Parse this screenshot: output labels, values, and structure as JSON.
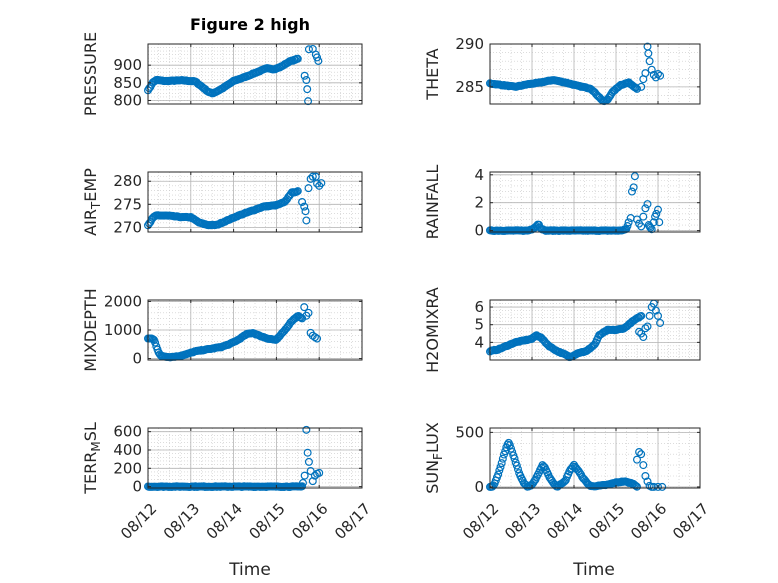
{
  "figure": {
    "title": "Figure 2 high"
  },
  "colors": {
    "marker": "#0072BD",
    "axis": "#262626",
    "grid": "#c8c8c8",
    "background": "#ffffff"
  },
  "chart_data": [
    {
      "type": "scatter",
      "id": "pressure",
      "ylabel": "PRESSURE",
      "grid": true,
      "marker": "open-circle",
      "xlim": [
        "08/12",
        "08/17"
      ],
      "ylim": [
        790,
        960
      ],
      "yticks": [
        800,
        850,
        900
      ],
      "xticks": [
        {
          "label": "08/12",
          "day": 12
        },
        {
          "label": "08/13",
          "day": 13
        },
        {
          "label": "08/14",
          "day": 14
        },
        {
          "label": "08/15",
          "day": 15
        },
        {
          "label": "08/16",
          "day": 16
        },
        {
          "label": "08/17",
          "day": 17
        }
      ],
      "anchors": [
        [
          12.0,
          830
        ],
        [
          12.04,
          835
        ],
        [
          12.08,
          845
        ],
        [
          12.12,
          852
        ],
        [
          12.2,
          858
        ],
        [
          12.4,
          855
        ],
        [
          12.8,
          857
        ],
        [
          13.1,
          854
        ],
        [
          13.25,
          840
        ],
        [
          13.4,
          825
        ],
        [
          13.5,
          820
        ],
        [
          13.6,
          825
        ],
        [
          13.75,
          835
        ],
        [
          14.0,
          855
        ],
        [
          14.3,
          868
        ],
        [
          14.5,
          878
        ],
        [
          14.8,
          892
        ],
        [
          14.95,
          888
        ],
        [
          15.1,
          895
        ],
        [
          15.3,
          910
        ],
        [
          15.5,
          918
        ]
      ],
      "extra": [
        [
          15.66,
          870
        ],
        [
          15.7,
          858
        ],
        [
          15.72,
          832
        ],
        [
          15.74,
          798
        ],
        [
          15.76,
          945
        ],
        [
          15.85,
          946
        ],
        [
          15.92,
          930
        ],
        [
          15.95,
          922
        ],
        [
          15.98,
          912
        ]
      ]
    },
    {
      "type": "scatter",
      "id": "theta",
      "ylabel": "THETA",
      "grid": true,
      "marker": "open-circle",
      "xlim": [
        "08/12",
        "08/17"
      ],
      "ylim": [
        283,
        290
      ],
      "yticks": [
        285,
        290
      ],
      "xticks": [
        {
          "label": "08/12",
          "day": 12
        },
        {
          "label": "08/13",
          "day": 13
        },
        {
          "label": "08/14",
          "day": 14
        },
        {
          "label": "08/15",
          "day": 15
        },
        {
          "label": "08/16",
          "day": 16
        },
        {
          "label": "08/17",
          "day": 17
        }
      ],
      "anchors": [
        [
          12.0,
          285.4
        ],
        [
          12.3,
          285.2
        ],
        [
          12.6,
          285.0
        ],
        [
          12.9,
          285.3
        ],
        [
          13.2,
          285.5
        ],
        [
          13.5,
          285.8
        ],
        [
          13.8,
          285.5
        ],
        [
          14.1,
          285.1
        ],
        [
          14.4,
          284.8
        ],
        [
          14.6,
          283.8
        ],
        [
          14.7,
          283.3
        ],
        [
          14.8,
          283.5
        ],
        [
          14.9,
          284.3
        ],
        [
          15.1,
          285.2
        ],
        [
          15.3,
          285.5
        ],
        [
          15.5,
          284.8
        ]
      ],
      "extra": [
        [
          15.6,
          285.0
        ],
        [
          15.65,
          285.9
        ],
        [
          15.7,
          286.6
        ],
        [
          15.75,
          289.7
        ],
        [
          15.77,
          288.9
        ],
        [
          15.8,
          288.0
        ],
        [
          15.85,
          287.0
        ],
        [
          15.9,
          286.4
        ],
        [
          15.95,
          286.1
        ],
        [
          16.0,
          286.5
        ],
        [
          16.05,
          286.3
        ]
      ]
    },
    {
      "type": "scatter",
      "id": "air-temp",
      "ylabel": "AIR",
      "ylabel_sub": "T",
      "ylabel_suffix": "EMP",
      "grid": true,
      "marker": "open-circle",
      "xlim": [
        "08/12",
        "08/17"
      ],
      "ylim": [
        269,
        282
      ],
      "yticks": [
        270,
        275,
        280
      ],
      "xticks": [
        {
          "label": "08/12",
          "day": 12
        },
        {
          "label": "08/13",
          "day": 13
        },
        {
          "label": "08/14",
          "day": 14
        },
        {
          "label": "08/15",
          "day": 15
        },
        {
          "label": "08/16",
          "day": 16
        },
        {
          "label": "08/17",
          "day": 17
        }
      ],
      "anchors": [
        [
          12.0,
          270.5
        ],
        [
          12.05,
          271.0
        ],
        [
          12.1,
          272.0
        ],
        [
          12.2,
          272.6
        ],
        [
          12.5,
          272.5
        ],
        [
          12.8,
          272.2
        ],
        [
          13.0,
          272.2
        ],
        [
          13.2,
          271.0
        ],
        [
          13.4,
          270.5
        ],
        [
          13.6,
          270.5
        ],
        [
          13.8,
          271.3
        ],
        [
          14.1,
          272.5
        ],
        [
          14.4,
          273.5
        ],
        [
          14.7,
          274.5
        ],
        [
          15.0,
          274.8
        ],
        [
          15.2,
          275.5
        ],
        [
          15.35,
          277.5
        ],
        [
          15.5,
          277.8
        ]
      ],
      "extra": [
        [
          15.6,
          275.5
        ],
        [
          15.65,
          274.5
        ],
        [
          15.68,
          273.5
        ],
        [
          15.7,
          271.5
        ],
        [
          15.75,
          278.5
        ],
        [
          15.8,
          280.5
        ],
        [
          15.85,
          281.0
        ],
        [
          15.92,
          281.0
        ],
        [
          15.95,
          279.5
        ],
        [
          16.0,
          279.0
        ],
        [
          16.05,
          279.6
        ]
      ]
    },
    {
      "type": "scatter",
      "id": "rainfall",
      "ylabel": "RAINFALL",
      "grid": true,
      "marker": "open-circle",
      "xlim": [
        "08/12",
        "08/17"
      ],
      "ylim": [
        -0.1,
        4.2
      ],
      "yticks": [
        0,
        2,
        4
      ],
      "xticks": [
        {
          "label": "08/12",
          "day": 12
        },
        {
          "label": "08/13",
          "day": 13
        },
        {
          "label": "08/14",
          "day": 14
        },
        {
          "label": "08/15",
          "day": 15
        },
        {
          "label": "08/16",
          "day": 16
        },
        {
          "label": "08/17",
          "day": 17
        }
      ],
      "anchors": [
        [
          12.0,
          0
        ],
        [
          12.9,
          0
        ],
        [
          13.0,
          0.1
        ],
        [
          13.1,
          0.3
        ],
        [
          13.15,
          0.5
        ],
        [
          13.2,
          0.2
        ],
        [
          13.3,
          0
        ],
        [
          15.1,
          0
        ],
        [
          15.25,
          0.1
        ],
        [
          15.3,
          0.6
        ]
      ],
      "extra": [
        [
          15.35,
          0.9
        ],
        [
          15.38,
          2.8
        ],
        [
          15.42,
          3.1
        ],
        [
          15.45,
          3.9
        ],
        [
          15.5,
          0.8
        ],
        [
          15.55,
          0.5
        ],
        [
          15.6,
          0.3
        ],
        [
          15.65,
          1.0
        ],
        [
          15.7,
          1.6
        ],
        [
          15.75,
          1.9
        ],
        [
          15.78,
          0.4
        ],
        [
          15.8,
          0.3
        ],
        [
          15.82,
          0.2
        ],
        [
          15.85,
          0.1
        ],
        [
          15.9,
          0.6
        ],
        [
          15.93,
          1.0
        ],
        [
          15.96,
          1.2
        ],
        [
          16.0,
          1.5
        ],
        [
          16.03,
          0.6
        ]
      ]
    },
    {
      "type": "scatter",
      "id": "mixdepth",
      "ylabel": "MIXDEPTH",
      "grid": true,
      "marker": "open-circle",
      "xlim": [
        "08/12",
        "08/17"
      ],
      "ylim": [
        -50,
        2050
      ],
      "yticks": [
        0,
        1000,
        2000
      ],
      "xticks": [
        {
          "label": "08/12",
          "day": 12
        },
        {
          "label": "08/13",
          "day": 13
        },
        {
          "label": "08/14",
          "day": 14
        },
        {
          "label": "08/15",
          "day": 15
        },
        {
          "label": "08/16",
          "day": 16
        },
        {
          "label": "08/17",
          "day": 17
        }
      ],
      "anchors": [
        [
          12.0,
          700
        ],
        [
          12.1,
          700
        ],
        [
          12.15,
          650
        ],
        [
          12.2,
          400
        ],
        [
          12.25,
          200
        ],
        [
          12.3,
          100
        ],
        [
          12.5,
          50
        ],
        [
          12.7,
          80
        ],
        [
          12.9,
          150
        ],
        [
          13.1,
          250
        ],
        [
          13.3,
          300
        ],
        [
          13.5,
          350
        ],
        [
          13.7,
          400
        ],
        [
          13.9,
          500
        ],
        [
          14.1,
          650
        ],
        [
          14.3,
          850
        ],
        [
          14.45,
          900
        ],
        [
          14.6,
          800
        ],
        [
          14.8,
          700
        ],
        [
          15.0,
          650
        ],
        [
          15.2,
          1000
        ],
        [
          15.35,
          1300
        ],
        [
          15.5,
          1500
        ],
        [
          15.6,
          1400
        ]
      ],
      "extra": [
        [
          15.65,
          1800
        ],
        [
          15.7,
          1500
        ],
        [
          15.75,
          1600
        ],
        [
          15.8,
          900
        ],
        [
          15.85,
          800
        ],
        [
          15.9,
          750
        ],
        [
          15.95,
          700
        ]
      ]
    },
    {
      "type": "scatter",
      "id": "h2omixra",
      "ylabel": "H2OMIXRA",
      "grid": true,
      "marker": "open-circle",
      "xlim": [
        "08/12",
        "08/17"
      ],
      "ylim": [
        3.0,
        6.4
      ],
      "yticks": [
        4,
        5,
        6
      ],
      "xticks": [
        {
          "label": "08/12",
          "day": 12
        },
        {
          "label": "08/13",
          "day": 13
        },
        {
          "label": "08/14",
          "day": 14
        },
        {
          "label": "08/15",
          "day": 15
        },
        {
          "label": "08/16",
          "day": 16
        },
        {
          "label": "08/17",
          "day": 17
        }
      ],
      "anchors": [
        [
          12.0,
          3.5
        ],
        [
          12.2,
          3.6
        ],
        [
          12.4,
          3.8
        ],
        [
          12.6,
          4.0
        ],
        [
          12.8,
          4.1
        ],
        [
          13.0,
          4.2
        ],
        [
          13.1,
          4.4
        ],
        [
          13.2,
          4.3
        ],
        [
          13.4,
          3.8
        ],
        [
          13.6,
          3.5
        ],
        [
          13.8,
          3.3
        ],
        [
          13.9,
          3.15
        ],
        [
          14.1,
          3.4
        ],
        [
          14.3,
          3.5
        ],
        [
          14.5,
          3.9
        ],
        [
          14.6,
          4.4
        ],
        [
          14.8,
          4.7
        ],
        [
          15.0,
          4.7
        ],
        [
          15.2,
          4.8
        ],
        [
          15.4,
          5.2
        ],
        [
          15.6,
          5.5
        ]
      ],
      "extra": [
        [
          15.55,
          4.6
        ],
        [
          15.6,
          4.5
        ],
        [
          15.65,
          4.3
        ],
        [
          15.7,
          4.8
        ],
        [
          15.75,
          4.9
        ],
        [
          15.8,
          5.5
        ],
        [
          15.85,
          6.0
        ],
        [
          15.9,
          6.2
        ],
        [
          15.95,
          5.8
        ],
        [
          16.0,
          5.5
        ],
        [
          16.05,
          5.1
        ]
      ]
    },
    {
      "type": "scatter",
      "id": "terr-msl",
      "ylabel": "TERR",
      "ylabel_sub": "M",
      "ylabel_suffix": "SL",
      "grid": true,
      "marker": "open-circle",
      "xlim": [
        "08/12",
        "08/17"
      ],
      "ylim": [
        -15,
        640
      ],
      "yticks": [
        0,
        200,
        400,
        600
      ],
      "xticks": [
        {
          "label": "08/12",
          "day": 12
        },
        {
          "label": "08/13",
          "day": 13
        },
        {
          "label": "08/14",
          "day": 14
        },
        {
          "label": "08/15",
          "day": 15
        },
        {
          "label": "08/16",
          "day": 16
        },
        {
          "label": "08/17",
          "day": 17
        }
      ],
      "anchors": [
        [
          12.0,
          0
        ],
        [
          15.5,
          0
        ],
        [
          15.6,
          5
        ]
      ],
      "extra": [
        [
          15.62,
          40
        ],
        [
          15.66,
          120
        ],
        [
          15.7,
          620
        ],
        [
          15.73,
          370
        ],
        [
          15.76,
          270
        ],
        [
          15.8,
          170
        ],
        [
          15.85,
          60
        ],
        [
          15.9,
          120
        ],
        [
          15.95,
          140
        ],
        [
          16.0,
          150
        ]
      ]
    },
    {
      "type": "scatter",
      "id": "sunflux",
      "ylabel": "SUN",
      "ylabel_sub": "F",
      "ylabel_suffix": "LUX",
      "grid": true,
      "marker": "open-circle",
      "xlim": [
        "08/12",
        "08/17"
      ],
      "ylim": [
        -10,
        540
      ],
      "yticks": [
        0,
        500
      ],
      "xticks": [
        {
          "label": "08/12",
          "day": 12
        },
        {
          "label": "08/13",
          "day": 13
        },
        {
          "label": "08/14",
          "day": 14
        },
        {
          "label": "08/15",
          "day": 15
        },
        {
          "label": "08/16",
          "day": 16
        },
        {
          "label": "08/17",
          "day": 17
        }
      ],
      "anchors": [
        [
          12.0,
          0
        ],
        [
          12.05,
          0
        ],
        [
          12.1,
          20
        ],
        [
          12.2,
          120
        ],
        [
          12.3,
          250
        ],
        [
          12.4,
          380
        ],
        [
          12.45,
          410
        ],
        [
          12.5,
          350
        ],
        [
          12.6,
          240
        ],
        [
          12.7,
          120
        ],
        [
          12.8,
          40
        ],
        [
          12.9,
          0
        ],
        [
          13.0,
          20
        ],
        [
          13.1,
          80
        ],
        [
          13.2,
          160
        ],
        [
          13.25,
          200
        ],
        [
          13.3,
          180
        ],
        [
          13.4,
          100
        ],
        [
          13.5,
          40
        ],
        [
          13.6,
          0
        ],
        [
          13.8,
          60
        ],
        [
          13.9,
          150
        ],
        [
          14.0,
          200
        ],
        [
          14.1,
          150
        ],
        [
          14.2,
          90
        ],
        [
          14.3,
          40
        ],
        [
          14.4,
          5
        ],
        [
          14.6,
          10
        ],
        [
          14.8,
          20
        ],
        [
          15.0,
          40
        ],
        [
          15.2,
          50
        ],
        [
          15.4,
          30
        ],
        [
          15.5,
          5
        ]
      ],
      "extra": [
        [
          15.5,
          250
        ],
        [
          15.55,
          320
        ],
        [
          15.6,
          300
        ],
        [
          15.65,
          200
        ],
        [
          15.7,
          100
        ],
        [
          15.75,
          50
        ],
        [
          15.8,
          10
        ],
        [
          15.85,
          0
        ],
        [
          15.9,
          0
        ],
        [
          16.0,
          0
        ],
        [
          16.1,
          0
        ]
      ]
    }
  ],
  "axes": {
    "xlabel": "Time"
  }
}
